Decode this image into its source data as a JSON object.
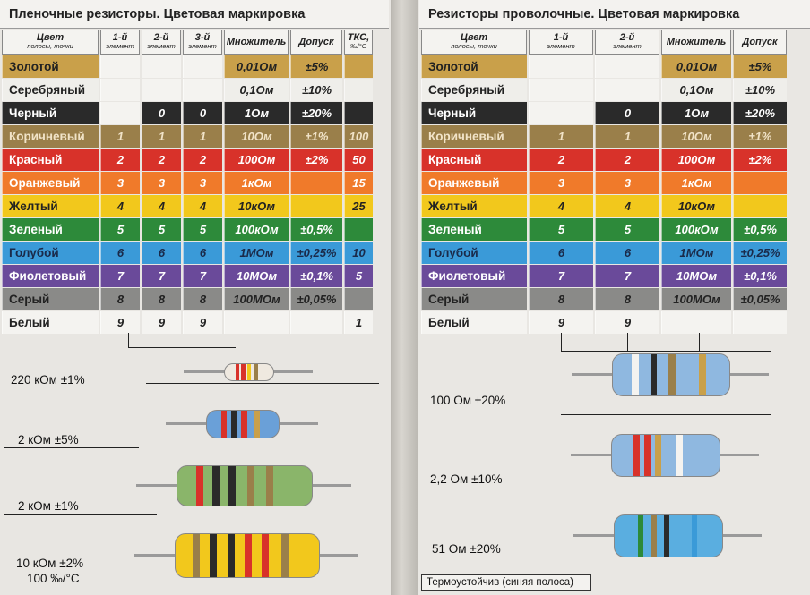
{
  "left": {
    "title": "Пленочные резисторы. Цветовая маркировка",
    "headers": [
      {
        "main": "Цвет",
        "sub": "полосы, точки"
      },
      {
        "main": "1-й",
        "sub": "элемент"
      },
      {
        "main": "2-й",
        "sub": "элемент"
      },
      {
        "main": "3-й",
        "sub": "элемент"
      },
      {
        "main": "Множитель",
        "sub": ""
      },
      {
        "main": "Допуск",
        "sub": ""
      },
      {
        "main": "ТКС,",
        "sub": "‰/°С"
      }
    ],
    "rows": [
      {
        "name": "Золотой",
        "c1": "",
        "c2": "",
        "c3": "",
        "mult": "0,01Ом",
        "tol": "±5%",
        "tks": ""
      },
      {
        "name": "Серебряный",
        "c1": "",
        "c2": "",
        "c3": "",
        "mult": "0,1Ом",
        "tol": "±10%",
        "tks": ""
      },
      {
        "name": "Черный",
        "c1": "",
        "c2": "0",
        "c3": "0",
        "mult": "1Ом",
        "tol": "±20%",
        "tks": ""
      },
      {
        "name": "Коричневый",
        "c1": "1",
        "c2": "1",
        "c3": "1",
        "mult": "10Ом",
        "tol": "±1%",
        "tks": "100"
      },
      {
        "name": "Красный",
        "c1": "2",
        "c2": "2",
        "c3": "2",
        "mult": "100Ом",
        "tol": "±2%",
        "tks": "50"
      },
      {
        "name": "Оранжевый",
        "c1": "3",
        "c2": "3",
        "c3": "3",
        "mult": "1кОм",
        "tol": "",
        "tks": "15"
      },
      {
        "name": "Желтый",
        "c1": "4",
        "c2": "4",
        "c3": "4",
        "mult": "10кОм",
        "tol": "",
        "tks": "25"
      },
      {
        "name": "Зеленый",
        "c1": "5",
        "c2": "5",
        "c3": "5",
        "mult": "100кОм",
        "tol": "±0,5%",
        "tks": ""
      },
      {
        "name": "Голубой",
        "c1": "6",
        "c2": "6",
        "c3": "6",
        "mult": "1МОм",
        "tol": "±0,25%",
        "tks": "10"
      },
      {
        "name": "Фиолетовый",
        "c1": "7",
        "c2": "7",
        "c3": "7",
        "mult": "10МОм",
        "tol": "±0,1%",
        "tks": "5"
      },
      {
        "name": "Серый",
        "c1": "8",
        "c2": "8",
        "c3": "8",
        "mult": "100МОм",
        "tol": "±0,05%",
        "tks": ""
      },
      {
        "name": "Белый",
        "c1": "9",
        "c2": "9",
        "c3": "9",
        "mult": "",
        "tol": "",
        "tks": "1"
      }
    ],
    "examples": [
      "220 кОм ±1%",
      "2 кОм ±5%",
      "2 кОм ±1%",
      "10 кОм ±2%",
      "100 ‰/°С"
    ]
  },
  "right": {
    "title": "Резисторы проволочные. Цветовая маркировка",
    "headers": [
      {
        "main": "Цвет",
        "sub": "полосы, точки"
      },
      {
        "main": "1-й",
        "sub": "элемент"
      },
      {
        "main": "2-й",
        "sub": "элемент"
      },
      {
        "main": "Множитель",
        "sub": ""
      },
      {
        "main": "Допуск",
        "sub": ""
      }
    ],
    "rows": [
      {
        "name": "Золотой",
        "c1": "",
        "c2": "",
        "mult": "0,01Ом",
        "tol": "±5%"
      },
      {
        "name": "Серебряный",
        "c1": "",
        "c2": "",
        "mult": "0,1Ом",
        "tol": "±10%"
      },
      {
        "name": "Черный",
        "c1": "",
        "c2": "0",
        "mult": "1Ом",
        "tol": "±20%"
      },
      {
        "name": "Коричневый",
        "c1": "1",
        "c2": "1",
        "mult": "10Ом",
        "tol": "±1%"
      },
      {
        "name": "Красный",
        "c1": "2",
        "c2": "2",
        "mult": "100Ом",
        "tol": "±2%"
      },
      {
        "name": "Оранжевый",
        "c1": "3",
        "c2": "3",
        "mult": "1кОм",
        "tol": ""
      },
      {
        "name": "Желтый",
        "c1": "4",
        "c2": "4",
        "mult": "10кОм",
        "tol": ""
      },
      {
        "name": "Зеленый",
        "c1": "5",
        "c2": "5",
        "mult": "100кОм",
        "tol": "±0,5%"
      },
      {
        "name": "Голубой",
        "c1": "6",
        "c2": "6",
        "mult": "1МОм",
        "tol": "±0,25%"
      },
      {
        "name": "Фиолетовый",
        "c1": "7",
        "c2": "7",
        "mult": "10МОм",
        "tol": "±0,1%"
      },
      {
        "name": "Серый",
        "c1": "8",
        "c2": "8",
        "mult": "100МОм",
        "tol": "±0,05%"
      },
      {
        "name": "Белый",
        "c1": "9",
        "c2": "9",
        "mult": "",
        "tol": ""
      }
    ],
    "examples": [
      "100 Ом ±20%",
      "2,2 Ом ±10%",
      "51 Ом ±20%"
    ],
    "note": "Термоустойчив (синяя полоса)"
  },
  "colors": {
    "gold": "#c9a04a",
    "silver": "#efeeea",
    "black": "#2a2a2a",
    "brown": "#9a7f4a",
    "red": "#d8322a",
    "orange": "#f07a2a",
    "yellow": "#f2c81c",
    "green": "#2d8a3a",
    "blue": "#3a9ad8",
    "violet": "#6a4a9a",
    "gray": "#8a8a88",
    "white": "#f4f3f0"
  }
}
